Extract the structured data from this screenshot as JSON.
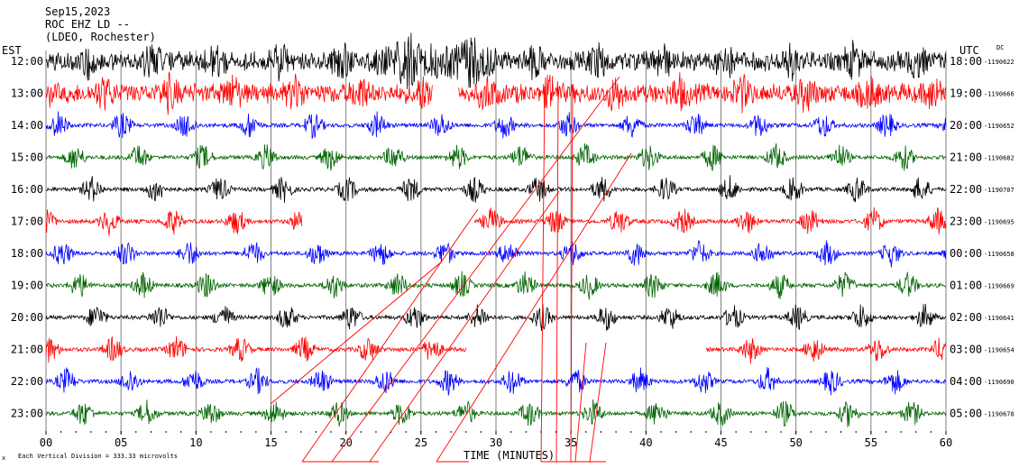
{
  "header": {
    "date": "Sep15,2023",
    "station": "ROC EHZ LD --",
    "network": "(LDEO, Rochester)"
  },
  "left_tz": "EST",
  "right_tz": "UTC",
  "dc_label": "DC",
  "footer": {
    "xlabel": "TIME (MINUTES)",
    "scale_note": "Each Vertical Division =  333.33 microvolts",
    "corner_mark": "x"
  },
  "colors": {
    "black": "#000000",
    "red": "#ff0000",
    "blue": "#0000ff",
    "green": "#006400",
    "grid": "#7f7f7f"
  },
  "chart_data": {
    "type": "line",
    "title": "ROC EHZ LD --",
    "xlabel": "TIME (MINUTES)",
    "xlim": [
      0,
      60
    ],
    "x_ticks": [
      "00",
      "05",
      "10",
      "15",
      "20",
      "25",
      "30",
      "35",
      "40",
      "45",
      "50",
      "55",
      "60"
    ],
    "rows": [
      {
        "est": "12:00",
        "utc": "18:00",
        "dc": "-1190622",
        "color": "black"
      },
      {
        "est": "13:00",
        "utc": "19:00",
        "dc": "-1190666",
        "color": "red"
      },
      {
        "est": "14:00",
        "utc": "20:00",
        "dc": "-1190652",
        "color": "blue"
      },
      {
        "est": "15:00",
        "utc": "21:00",
        "dc": "-1190682",
        "color": "green"
      },
      {
        "est": "16:00",
        "utc": "22:00",
        "dc": "-1190707",
        "color": "black"
      },
      {
        "est": "17:00",
        "utc": "23:00",
        "dc": "-1190695",
        "color": "red"
      },
      {
        "est": "18:00",
        "utc": "00:00",
        "dc": "-1190658",
        "color": "blue"
      },
      {
        "est": "19:00",
        "utc": "01:00",
        "dc": "-1190669",
        "color": "green"
      },
      {
        "est": "20:00",
        "utc": "02:00",
        "dc": "-1190641",
        "color": "black"
      },
      {
        "est": "21:00",
        "utc": "03:00",
        "dc": "-1190654",
        "color": "red"
      },
      {
        "est": "22:00",
        "utc": "04:00",
        "dc": "-1190690",
        "color": "blue"
      },
      {
        "est": "23:00",
        "utc": "05:00",
        "dc": "-1190678",
        "color": "green"
      }
    ],
    "grid": true,
    "gaps_minutes": {
      "13:00": [
        [
          25.8,
          27.5
        ]
      ],
      "17:00": [
        [
          17.1,
          28.5
        ]
      ],
      "21:00": [
        [
          28.0,
          44.0
        ]
      ]
    }
  }
}
